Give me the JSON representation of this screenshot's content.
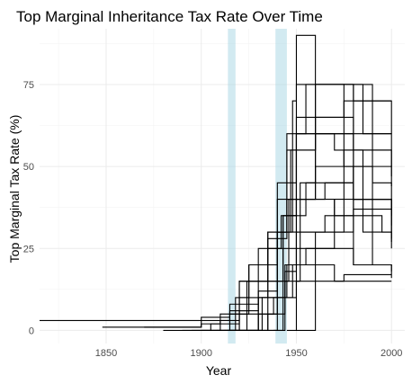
{
  "chart_data": {
    "type": "line",
    "title": "Top Marginal Inheritance Tax Rate Over Time",
    "xlabel": "Year",
    "ylabel": "Top Marginal Tax Rate (%)",
    "xlim": [
      1815,
      2007
    ],
    "ylim": [
      -4,
      92
    ],
    "x_ticks": [
      1850,
      1900,
      1950,
      2000
    ],
    "y_ticks": [
      0,
      25,
      50,
      75
    ],
    "grid": true,
    "legend": "none",
    "line_color": "#000000",
    "highlight_color": "#add8e6",
    "highlight_bands": [
      [
        1914,
        1918
      ],
      [
        1939,
        1945
      ]
    ],
    "series": [
      {
        "x": [
          1815,
          1880,
          1900,
          1915,
          1920,
          1925,
          1940,
          1950,
          1960,
          1980,
          2000
        ],
        "y": [
          3,
          3,
          4,
          8,
          15,
          20,
          40,
          60,
          65,
          55,
          50
        ]
      },
      {
        "x": [
          1848,
          1900,
          1910,
          1920,
          1925,
          1930,
          1940,
          1945,
          1960,
          1975,
          2000
        ],
        "y": [
          1,
          2,
          3,
          10,
          20,
          25,
          30,
          55,
          65,
          70,
          70
        ]
      },
      {
        "x": [
          1870,
          1900,
          1915,
          1925,
          1935,
          1940,
          1950,
          1970,
          1990,
          2000
        ],
        "y": [
          1,
          3,
          6,
          15,
          30,
          45,
          75,
          75,
          55,
          55
        ]
      },
      {
        "x": [
          1880,
          1905,
          1920,
          1930,
          1940,
          1950,
          1965,
          1980,
          1990,
          2000
        ],
        "y": [
          0,
          2,
          8,
          20,
          30,
          40,
          45,
          50,
          40,
          40
        ]
      },
      {
        "x": [
          1890,
          1910,
          1920,
          1935,
          1945,
          1955,
          1975,
          1995,
          2000
        ],
        "y": [
          0,
          5,
          15,
          30,
          60,
          75,
          50,
          50,
          47
        ]
      },
      {
        "x": [
          1895,
          1915,
          1925,
          1935,
          1945,
          1950,
          1970,
          1985,
          2000
        ],
        "y": [
          0,
          5,
          20,
          28,
          40,
          60,
          55,
          30,
          28
        ]
      },
      {
        "x": [
          1900,
          1918,
          1935,
          1942,
          1950,
          1970,
          1995,
          2000
        ],
        "y": [
          0,
          10,
          25,
          35,
          40,
          35,
          30,
          30
        ]
      },
      {
        "x": [
          1905,
          1920,
          1930,
          1940,
          1952,
          1960,
          1980,
          2000
        ],
        "y": [
          0,
          6,
          12,
          25,
          45,
          60,
          40,
          35
        ]
      },
      {
        "x": [
          1908,
          1920,
          1938,
          1948,
          1955,
          1980,
          2000
        ],
        "y": [
          0,
          5,
          10,
          20,
          25,
          20,
          18
        ]
      },
      {
        "x": [
          1910,
          1930,
          1944,
          1950,
          1970,
          2000
        ],
        "y": [
          0,
          10,
          18,
          20,
          15,
          15
        ]
      },
      {
        "x": [
          1912,
          1924,
          1940,
          1947,
          1960,
          1980,
          2000
        ],
        "y": [
          0,
          15,
          30,
          55,
          75,
          40,
          35
        ]
      },
      {
        "x": [
          1914,
          1930,
          1940,
          1946,
          1960,
          2000
        ],
        "y": [
          0,
          5,
          15,
          40,
          60,
          32
        ]
      },
      {
        "x": [
          1915,
          1930,
          1940,
          1948,
          1950,
          1960,
          1985,
          2000
        ],
        "y": [
          0,
          10,
          30,
          70,
          90,
          75,
          60,
          60
        ]
      },
      {
        "x": [
          1918,
          1932,
          1945,
          1950,
          1970,
          2000
        ],
        "y": [
          0,
          10,
          20,
          30,
          40,
          25
        ]
      },
      {
        "x": [
          1920,
          1935,
          1943,
          1955,
          1980,
          2000
        ],
        "y": [
          0,
          15,
          35,
          45,
          20,
          16
        ]
      },
      {
        "x": [
          1925,
          1935,
          1944,
          1952,
          1970,
          1980,
          2000
        ],
        "y": [
          0,
          5,
          15,
          25,
          30,
          40,
          27
        ]
      },
      {
        "x": [
          1930,
          1940,
          1950,
          1960,
          1975,
          2000
        ],
        "y": [
          0,
          10,
          15,
          15,
          17,
          17
        ]
      },
      {
        "x": [
          1935,
          1943,
          1950,
          1960,
          1980,
          2000
        ],
        "y": [
          0,
          35,
          65,
          75,
          70,
          60
        ]
      },
      {
        "x": [
          1938,
          1944,
          1950,
          1965,
          1980,
          2000
        ],
        "y": [
          0,
          20,
          30,
          35,
          37,
          37
        ]
      },
      {
        "x": [
          1945,
          1950,
          1960,
          1980,
          1990,
          2000
        ],
        "y": [
          0,
          40,
          50,
          40,
          20,
          20
        ]
      },
      {
        "x": [
          1950,
          1960,
          1975,
          1990,
          2000
        ],
        "y": [
          0,
          30,
          55,
          45,
          44
        ]
      }
    ]
  }
}
